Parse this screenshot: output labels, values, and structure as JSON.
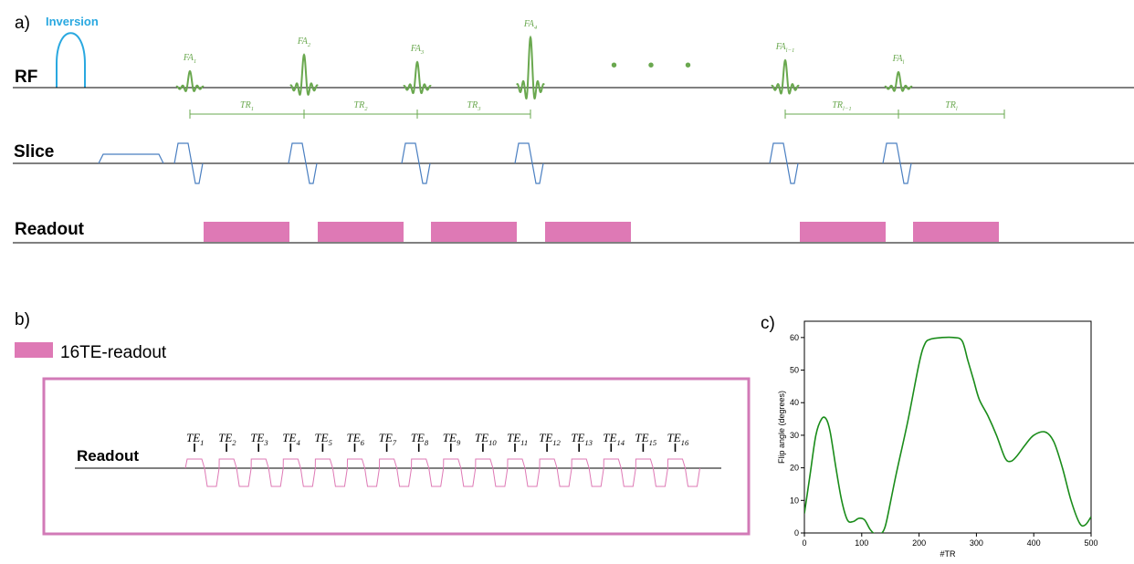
{
  "panel_a": {
    "label": "a)",
    "inversion": "Inversion",
    "rows": {
      "rf": "RF",
      "slice": "Slice",
      "readout": "Readout"
    },
    "ellipsis": "• • •",
    "pulses": [
      {
        "base": "FA",
        "sub": "1",
        "amp": 18
      },
      {
        "base": "FA",
        "sub": "2",
        "amp": 36
      },
      {
        "base": "FA",
        "sub": "3",
        "amp": 28
      },
      {
        "base": "FA",
        "sub": "4",
        "amp": 55
      },
      {
        "base": "FA",
        "sub": "l−1",
        "amp": 30
      },
      {
        "base": "FA",
        "sub": "l",
        "amp": 17
      }
    ],
    "tr_labels": [
      {
        "base": "TR",
        "sub": "1"
      },
      {
        "base": "TR",
        "sub": "2"
      },
      {
        "base": "TR",
        "sub": "3"
      },
      {
        "base": "TR",
        "sub": "l−1"
      },
      {
        "base": "TR",
        "sub": "l"
      }
    ]
  },
  "panel_b": {
    "label": "b)",
    "legend_label": "16TE-readout",
    "readout_label": "Readout",
    "te_base": "TE",
    "te_subs": [
      "1",
      "2",
      "3",
      "4",
      "5",
      "6",
      "7",
      "8",
      "9",
      "10",
      "11",
      "12",
      "13",
      "14",
      "15",
      "16"
    ]
  },
  "panel_c": {
    "label": "c)"
  },
  "chart_data": {
    "type": "line",
    "xlabel": "#TR",
    "ylabel": "Flip angle (degrees)",
    "xlim": [
      0,
      500
    ],
    "ylim": [
      0,
      65
    ],
    "xticks": [
      0,
      100,
      200,
      300,
      400,
      500
    ],
    "yticks": [
      0,
      10,
      20,
      30,
      40,
      50,
      60
    ],
    "grid": false,
    "series": [
      {
        "color": "#1a8c1a",
        "x": [
          0,
          10,
          20,
          30,
          38,
          45,
          55,
          65,
          75,
          85,
          95,
          105,
          115,
          125,
          135,
          140,
          145,
          160,
          180,
          200,
          210,
          220,
          240,
          260,
          275,
          285,
          295,
          305,
          320,
          335,
          350,
          360,
          370,
          385,
          400,
          420,
          435,
          450,
          465,
          480,
          490,
          500
        ],
        "y": [
          6,
          18,
          30,
          35,
          35,
          31,
          20,
          10,
          4,
          3.5,
          4.5,
          4,
          1,
          -0.5,
          0,
          1.5,
          5,
          18,
          34,
          52,
          58,
          59.5,
          60,
          60,
          59,
          53,
          47,
          41,
          36,
          30,
          23,
          22,
          23.5,
          27,
          30,
          31,
          28,
          20,
          10,
          3,
          2.5,
          5
        ]
      }
    ]
  }
}
